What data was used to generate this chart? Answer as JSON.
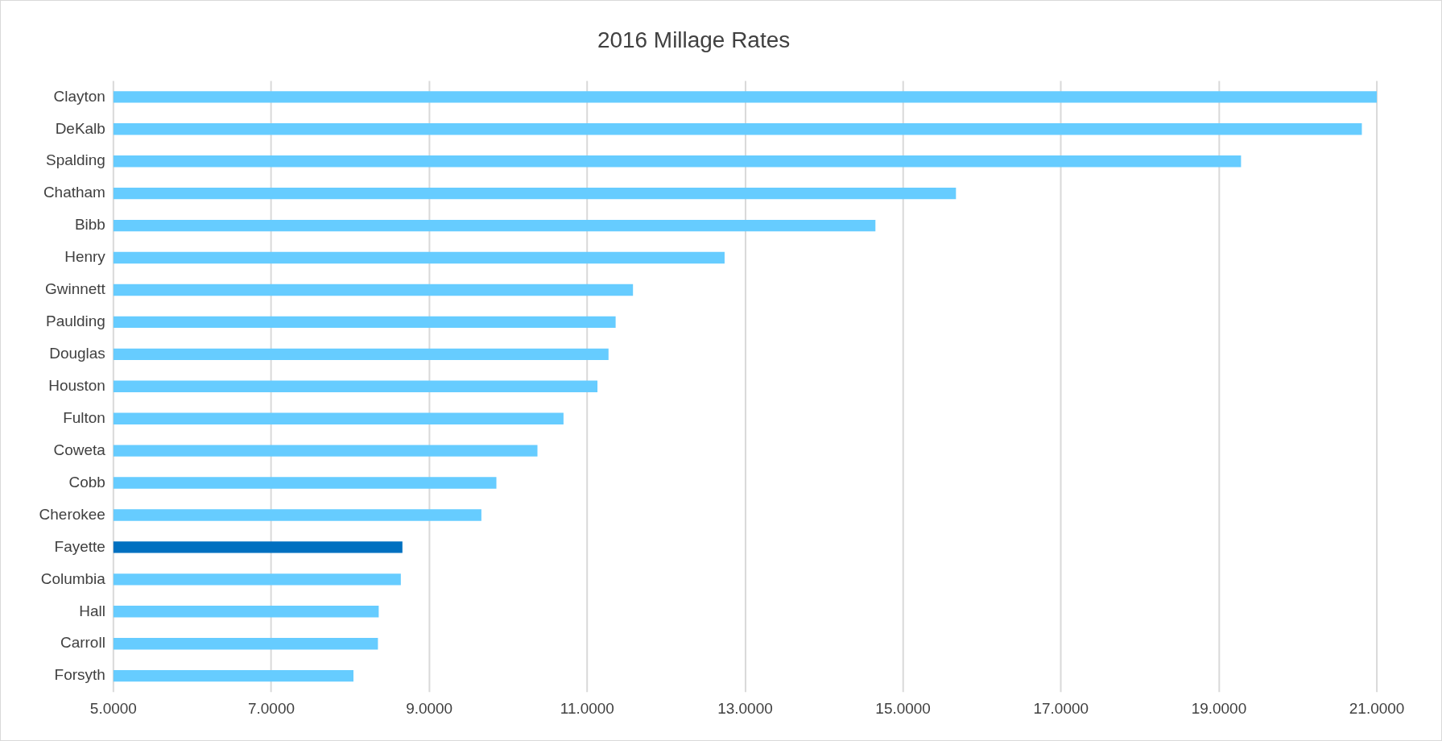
{
  "chart_data": {
    "type": "bar",
    "orientation": "horizontal",
    "title": "2016 Millage Rates",
    "categories": [
      "Clayton",
      "DeKalb",
      "Spalding",
      "Chatham",
      "Bibb",
      "Henry",
      "Gwinnett",
      "Paulding",
      "Douglas",
      "Houston",
      "Fulton",
      "Coweta",
      "Cobb",
      "Cherokee",
      "Fayette",
      "Columbia",
      "Hall",
      "Carroll",
      "Forsyth"
    ],
    "values": [
      21.0,
      20.81,
      19.28,
      15.67,
      14.65,
      12.74,
      11.58,
      11.36,
      11.27,
      11.13,
      10.7,
      10.37,
      9.85,
      9.66,
      8.66,
      8.64,
      8.36,
      8.35,
      8.04
    ],
    "colors": [
      "#66ccff",
      "#66ccff",
      "#66ccff",
      "#66ccff",
      "#66ccff",
      "#66ccff",
      "#66ccff",
      "#66ccff",
      "#66ccff",
      "#66ccff",
      "#66ccff",
      "#66ccff",
      "#66ccff",
      "#66ccff",
      "#0070c0",
      "#66ccff",
      "#66ccff",
      "#66ccff",
      "#66ccff"
    ],
    "xlim": [
      5,
      21
    ],
    "xticks": [
      {
        "value": 5,
        "label": "5.0000"
      },
      {
        "value": 7,
        "label": "7.0000"
      },
      {
        "value": 9,
        "label": "9.0000"
      },
      {
        "value": 11,
        "label": "11.0000"
      },
      {
        "value": 13,
        "label": "13.0000"
      },
      {
        "value": 15,
        "label": "15.0000"
      },
      {
        "value": 17,
        "label": "17.0000"
      },
      {
        "value": 19,
        "label": "19.0000"
      },
      {
        "value": 21,
        "label": "21.0000"
      }
    ],
    "grid": "x"
  }
}
